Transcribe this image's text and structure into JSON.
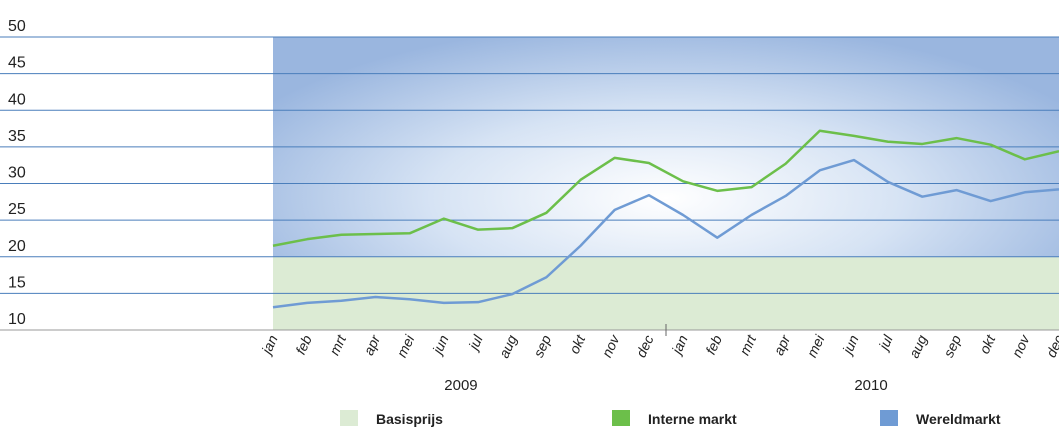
{
  "chart_data": {
    "type": "line",
    "categories": [
      "jan",
      "feb",
      "mrt",
      "apr",
      "mei",
      "jun",
      "jul",
      "aug",
      "sep",
      "okt",
      "nov",
      "dec",
      "jan",
      "feb",
      "mrt",
      "apr",
      "mei",
      "jun",
      "jul",
      "aug",
      "sep",
      "okt",
      "nov",
      "dec"
    ],
    "groups": [
      "2009",
      "2010"
    ],
    "series": [
      {
        "name": "Basisprijs",
        "color": "#dcebd4",
        "kind": "area",
        "values": [
          20,
          20,
          20,
          20,
          20,
          20,
          20,
          20,
          20,
          20,
          20,
          20,
          20,
          20,
          20,
          20,
          20,
          20,
          20,
          20,
          20,
          20,
          20,
          20
        ]
      },
      {
        "name": "Interne markt",
        "color": "#6cbf4a",
        "values": [
          21.5,
          22.4,
          23.0,
          23.1,
          23.2,
          25.2,
          23.7,
          23.9,
          26.0,
          30.5,
          33.5,
          32.8,
          30.3,
          29.0,
          29.5,
          32.7,
          37.2,
          36.5,
          35.7,
          35.4,
          36.2,
          35.3,
          33.3,
          34.4
        ]
      },
      {
        "name": "Wereldmarkt",
        "color": "#6f9bd4",
        "values": [
          13.1,
          13.7,
          14.0,
          14.5,
          14.2,
          13.7,
          13.8,
          14.9,
          17.2,
          21.5,
          26.4,
          28.4,
          25.7,
          22.6,
          25.7,
          28.3,
          31.8,
          33.2,
          30.2,
          28.2,
          29.1,
          27.6,
          28.8,
          29.2
        ]
      }
    ],
    "ylim": [
      10,
      50
    ],
    "yticks": [
      10,
      15,
      20,
      25,
      30,
      35,
      40,
      45,
      50
    ],
    "grid": true
  }
}
